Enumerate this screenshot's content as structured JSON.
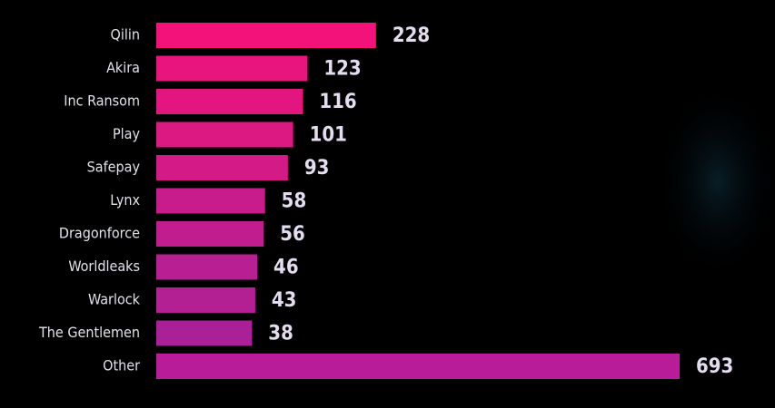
{
  "chart_data": {
    "type": "bar",
    "orientation": "horizontal",
    "categories": [
      "Qilin",
      "Akira",
      "Inc Ransom",
      "Play",
      "Safepay",
      "Lynx",
      "Dragonforce",
      "Worldleaks",
      "Warlock",
      "The Gentlemen",
      "Other"
    ],
    "values": [
      228,
      123,
      116,
      101,
      93,
      58,
      56,
      46,
      43,
      38,
      693
    ],
    "colors": [
      "#f2127a",
      "#e8157e",
      "#e31680",
      "#dc1882",
      "#d41a86",
      "#c81c8c",
      "#c21d8e",
      "#b81f92",
      "#b22094",
      "#aa2197",
      "#b81c98"
    ]
  }
}
